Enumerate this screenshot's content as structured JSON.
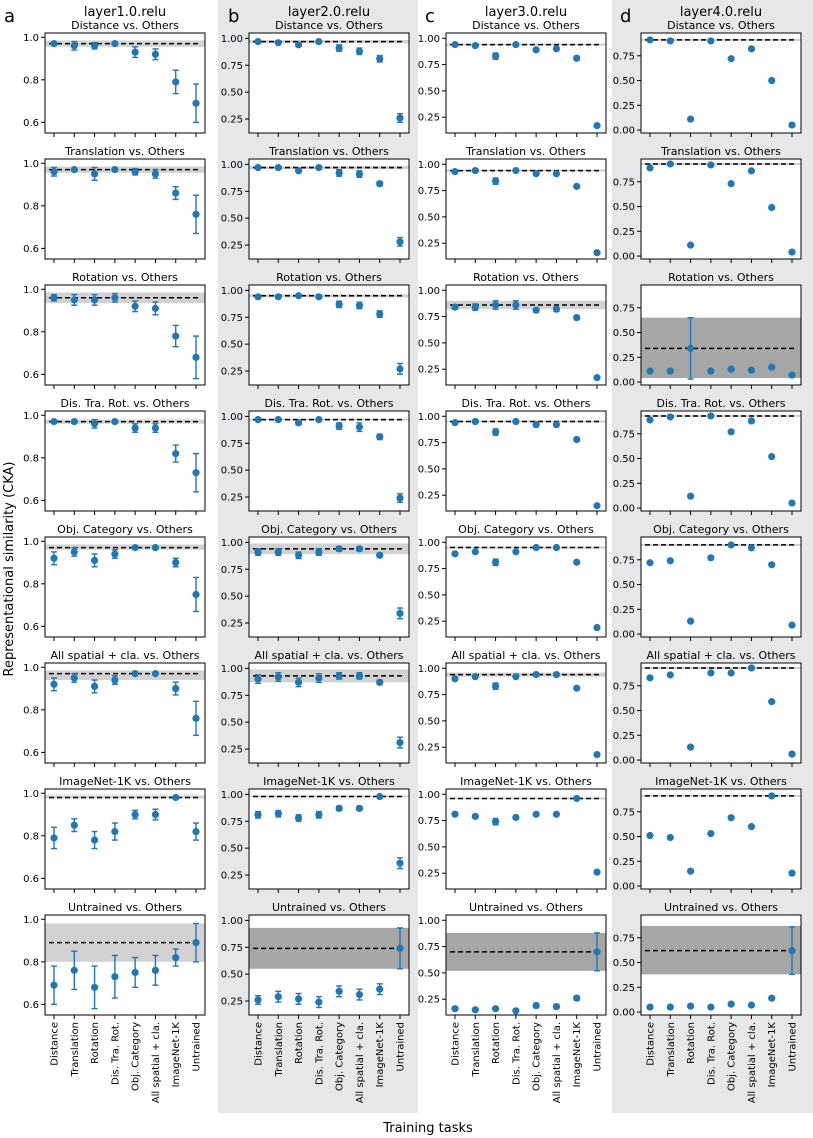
{
  "figure": {
    "ylabel": "Representational similarity (CKA)",
    "xlabel": "Training tasks",
    "tasks": [
      "Distance",
      "Translation",
      "Rotation",
      "Dis. Tra. Rot.",
      "Obj. Category",
      "All spatial + cla.",
      "ImageNet-1K",
      "Untrained"
    ],
    "columns": [
      {
        "letter": "a",
        "title": "layer1.0.relu"
      },
      {
        "letter": "b",
        "title": "layer2.0.relu"
      },
      {
        "letter": "c",
        "title": "layer3.0.relu"
      },
      {
        "letter": "d",
        "title": "layer4.0.relu"
      }
    ],
    "colors": {
      "marker": "#1f77b4",
      "band_light": "#d2d2d2",
      "band_dark": "#a6a6a6",
      "column_bg": "#e6e7e8",
      "refline": "#000000"
    }
  },
  "chart_data": [
    {
      "type": "scatter",
      "column": "a",
      "title": "Distance vs. Others",
      "ylim": [
        0.55,
        1.02
      ],
      "yticks": [
        0.6,
        0.8,
        1.0
      ],
      "ref": 0.97,
      "band": [
        0.955,
        0.985
      ],
      "y": [
        0.97,
        0.96,
        0.96,
        0.97,
        0.93,
        0.92,
        0.79,
        0.69
      ],
      "err": [
        0.01,
        0.02,
        0.015,
        0.01,
        0.025,
        0.025,
        0.055,
        0.09
      ]
    },
    {
      "type": "scatter",
      "column": "b",
      "title": "Distance vs. Others",
      "ylim": [
        0.12,
        1.05
      ],
      "yticks": [
        0.25,
        0.5,
        0.75,
        1.0
      ],
      "ref": 0.97,
      "band": [
        0.955,
        0.985
      ],
      "y": [
        0.97,
        0.96,
        0.94,
        0.97,
        0.91,
        0.88,
        0.81,
        0.26
      ],
      "err": [
        0.01,
        0.01,
        0.015,
        0.01,
        0.03,
        0.03,
        0.03,
        0.04
      ]
    },
    {
      "type": "scatter",
      "column": "c",
      "title": "Distance vs. Others",
      "ylim": [
        0.1,
        1.05
      ],
      "yticks": [
        0.25,
        0.5,
        0.75,
        1.0
      ],
      "ref": 0.94,
      "band": [
        0.93,
        0.95
      ],
      "y": [
        0.94,
        0.93,
        0.83,
        0.94,
        0.89,
        0.9,
        0.81,
        0.17
      ],
      "err": [
        0.01,
        0.01,
        0.03,
        0.01,
        0.01,
        0.01,
        0.02,
        0.01
      ]
    },
    {
      "type": "scatter",
      "column": "d",
      "title": "Distance vs. Others",
      "ylim": [
        -0.03,
        0.98
      ],
      "yticks": [
        0.0,
        0.25,
        0.5,
        0.75
      ],
      "ref": 0.91,
      "band": [
        0.9,
        0.92
      ],
      "y": [
        0.91,
        0.9,
        0.11,
        0.9,
        0.72,
        0.82,
        0.5,
        0.05
      ],
      "err": [
        0.01,
        0.01,
        0.01,
        0.01,
        0.01,
        0.01,
        0.01,
        0.01
      ]
    },
    {
      "type": "scatter",
      "column": "a",
      "title": "Translation vs. Others",
      "ylim": [
        0.55,
        1.02
      ],
      "yticks": [
        0.6,
        0.8,
        1.0
      ],
      "ref": 0.97,
      "band": [
        0.955,
        0.985
      ],
      "y": [
        0.96,
        0.97,
        0.95,
        0.97,
        0.96,
        0.95,
        0.86,
        0.76
      ],
      "err": [
        0.02,
        0.01,
        0.03,
        0.01,
        0.015,
        0.02,
        0.03,
        0.09
      ]
    },
    {
      "type": "scatter",
      "column": "b",
      "title": "Translation vs. Others",
      "ylim": [
        0.12,
        1.05
      ],
      "yticks": [
        0.25,
        0.5,
        0.75,
        1.0
      ],
      "ref": 0.97,
      "band": [
        0.955,
        0.985
      ],
      "y": [
        0.97,
        0.97,
        0.94,
        0.97,
        0.92,
        0.91,
        0.82,
        0.28
      ],
      "err": [
        0.01,
        0.01,
        0.015,
        0.01,
        0.03,
        0.03,
        0.02,
        0.04
      ]
    },
    {
      "type": "scatter",
      "column": "c",
      "title": "Translation vs. Others",
      "ylim": [
        0.1,
        1.05
      ],
      "yticks": [
        0.25,
        0.5,
        0.75,
        1.0
      ],
      "ref": 0.94,
      "band": [
        0.93,
        0.95
      ],
      "y": [
        0.93,
        0.94,
        0.84,
        0.94,
        0.91,
        0.91,
        0.79,
        0.16
      ],
      "err": [
        0.01,
        0.01,
        0.03,
        0.01,
        0.01,
        0.01,
        0.01,
        0.01
      ]
    },
    {
      "type": "scatter",
      "column": "d",
      "title": "Translation vs. Others",
      "ylim": [
        -0.03,
        0.98
      ],
      "yticks": [
        0.0,
        0.25,
        0.5,
        0.75
      ],
      "ref": 0.93,
      "band": [
        0.92,
        0.94
      ],
      "y": [
        0.89,
        0.93,
        0.11,
        0.92,
        0.73,
        0.86,
        0.49,
        0.04
      ],
      "err": [
        0.01,
        0.01,
        0.01,
        0.01,
        0.01,
        0.01,
        0.01,
        0.01
      ]
    },
    {
      "type": "scatter",
      "column": "a",
      "title": "Rotation vs. Others",
      "ylim": [
        0.55,
        1.02
      ],
      "yticks": [
        0.6,
        0.8,
        1.0
      ],
      "ref": 0.96,
      "band": [
        0.935,
        0.985
      ],
      "y": [
        0.96,
        0.95,
        0.95,
        0.96,
        0.92,
        0.91,
        0.78,
        0.68
      ],
      "err": [
        0.015,
        0.025,
        0.025,
        0.02,
        0.025,
        0.03,
        0.05,
        0.1
      ]
    },
    {
      "type": "scatter",
      "column": "b",
      "title": "Rotation vs. Others",
      "ylim": [
        0.12,
        1.05
      ],
      "yticks": [
        0.25,
        0.5,
        0.75,
        1.0
      ],
      "ref": 0.95,
      "band": [
        0.935,
        0.965
      ],
      "y": [
        0.94,
        0.94,
        0.95,
        0.94,
        0.87,
        0.86,
        0.78,
        0.27
      ],
      "err": [
        0.01,
        0.01,
        0.01,
        0.01,
        0.03,
        0.03,
        0.03,
        0.05
      ]
    },
    {
      "type": "scatter",
      "column": "c",
      "title": "Rotation vs. Others",
      "ylim": [
        0.1,
        1.05
      ],
      "yticks": [
        0.25,
        0.5,
        0.75,
        1.0
      ],
      "ref": 0.86,
      "band": [
        0.82,
        0.9
      ],
      "y": [
        0.84,
        0.84,
        0.86,
        0.86,
        0.81,
        0.82,
        0.74,
        0.17
      ],
      "err": [
        0.02,
        0.03,
        0.04,
        0.04,
        0.02,
        0.02,
        0.02,
        0.01
      ]
    },
    {
      "type": "scatter",
      "column": "d",
      "title": "Rotation vs. Others",
      "ylim": [
        -0.03,
        0.98
      ],
      "yticks": [
        0.0,
        0.25,
        0.5,
        0.75
      ],
      "ref": 0.34,
      "band": [
        0.04,
        0.65
      ],
      "y": [
        0.11,
        0.11,
        0.34,
        0.11,
        0.13,
        0.12,
        0.15,
        0.07
      ],
      "err": [
        0.01,
        0.01,
        0.31,
        0.01,
        0.01,
        0.01,
        0.01,
        0.01
      ]
    },
    {
      "type": "scatter",
      "column": "a",
      "title": "Dis. Tra. Rot. vs. Others",
      "ylim": [
        0.55,
        1.02
      ],
      "yticks": [
        0.6,
        0.8,
        1.0
      ],
      "ref": 0.97,
      "band": [
        0.96,
        0.98
      ],
      "y": [
        0.97,
        0.97,
        0.96,
        0.97,
        0.94,
        0.94,
        0.82,
        0.73
      ],
      "err": [
        0.01,
        0.01,
        0.02,
        0.01,
        0.02,
        0.02,
        0.04,
        0.09
      ]
    },
    {
      "type": "scatter",
      "column": "b",
      "title": "Dis. Tra. Rot. vs. Others",
      "ylim": [
        0.12,
        1.05
      ],
      "yticks": [
        0.25,
        0.5,
        0.75,
        1.0
      ],
      "ref": 0.97,
      "band": [
        0.96,
        0.98
      ],
      "y": [
        0.97,
        0.97,
        0.94,
        0.97,
        0.91,
        0.9,
        0.81,
        0.24
      ],
      "err": [
        0.01,
        0.01,
        0.015,
        0.01,
        0.03,
        0.04,
        0.025,
        0.04
      ]
    },
    {
      "type": "scatter",
      "column": "c",
      "title": "Dis. Tra. Rot. vs. Others",
      "ylim": [
        0.1,
        1.05
      ],
      "yticks": [
        0.25,
        0.5,
        0.75,
        1.0
      ],
      "ref": 0.95,
      "band": [
        0.94,
        0.96
      ],
      "y": [
        0.94,
        0.95,
        0.85,
        0.95,
        0.92,
        0.92,
        0.78,
        0.15
      ],
      "err": [
        0.01,
        0.01,
        0.03,
        0.01,
        0.01,
        0.01,
        0.01,
        0.01
      ]
    },
    {
      "type": "scatter",
      "column": "d",
      "title": "Dis. Tra. Rot. vs. Others",
      "ylim": [
        -0.03,
        0.98
      ],
      "yticks": [
        0.0,
        0.25,
        0.5,
        0.75
      ],
      "ref": 0.93,
      "band": [
        0.92,
        0.94
      ],
      "y": [
        0.89,
        0.92,
        0.12,
        0.93,
        0.77,
        0.88,
        0.52,
        0.05
      ],
      "err": [
        0.01,
        0.01,
        0.01,
        0.01,
        0.01,
        0.01,
        0.01,
        0.01
      ]
    },
    {
      "type": "scatter",
      "column": "a",
      "title": "Obj. Category vs. Others",
      "ylim": [
        0.55,
        1.02
      ],
      "yticks": [
        0.6,
        0.8,
        1.0
      ],
      "ref": 0.97,
      "band": [
        0.96,
        0.985
      ],
      "y": [
        0.92,
        0.95,
        0.91,
        0.94,
        0.97,
        0.97,
        0.9,
        0.75
      ],
      "err": [
        0.03,
        0.02,
        0.03,
        0.02,
        0.01,
        0.01,
        0.02,
        0.08
      ]
    },
    {
      "type": "scatter",
      "column": "b",
      "title": "Obj. Category vs. Others",
      "ylim": [
        0.12,
        1.05
      ],
      "yticks": [
        0.25,
        0.5,
        0.75,
        1.0
      ],
      "ref": 0.94,
      "band": [
        0.89,
        0.99
      ],
      "y": [
        0.91,
        0.91,
        0.88,
        0.91,
        0.94,
        0.94,
        0.88,
        0.34
      ],
      "err": [
        0.03,
        0.03,
        0.03,
        0.03,
        0.02,
        0.02,
        0.02,
        0.05
      ]
    },
    {
      "type": "scatter",
      "column": "c",
      "title": "Obj. Category vs. Others",
      "ylim": [
        0.1,
        1.05
      ],
      "yticks": [
        0.25,
        0.5,
        0.75,
        1.0
      ],
      "ref": 0.95,
      "band": [
        0.94,
        0.96
      ],
      "y": [
        0.89,
        0.91,
        0.81,
        0.91,
        0.95,
        0.95,
        0.81,
        0.19
      ],
      "err": [
        0.01,
        0.01,
        0.03,
        0.01,
        0.01,
        0.01,
        0.01,
        0.01
      ]
    },
    {
      "type": "scatter",
      "column": "d",
      "title": "Obj. Category vs. Others",
      "ylim": [
        -0.03,
        0.98
      ],
      "yticks": [
        0.0,
        0.25,
        0.5,
        0.75
      ],
      "ref": 0.9,
      "band": [
        0.89,
        0.91
      ],
      "y": [
        0.72,
        0.74,
        0.13,
        0.77,
        0.9,
        0.87,
        0.7,
        0.09
      ],
      "err": [
        0.01,
        0.01,
        0.01,
        0.01,
        0.01,
        0.01,
        0.01,
        0.01
      ]
    },
    {
      "type": "scatter",
      "column": "a",
      "title": "All spatial + cla. vs. Others",
      "ylim": [
        0.55,
        1.02
      ],
      "yticks": [
        0.6,
        0.8,
        1.0
      ],
      "ref": 0.97,
      "band": [
        0.94,
        0.985
      ],
      "y": [
        0.92,
        0.95,
        0.91,
        0.94,
        0.97,
        0.97,
        0.9,
        0.76
      ],
      "err": [
        0.03,
        0.02,
        0.03,
        0.02,
        0.01,
        0.01,
        0.03,
        0.08
      ]
    },
    {
      "type": "scatter",
      "column": "b",
      "title": "All spatial + cla. vs. Others",
      "ylim": [
        0.12,
        1.05
      ],
      "yticks": [
        0.25,
        0.5,
        0.75,
        1.0
      ],
      "ref": 0.93,
      "band": [
        0.87,
        0.99
      ],
      "y": [
        0.9,
        0.92,
        0.87,
        0.91,
        0.93,
        0.93,
        0.87,
        0.31
      ],
      "err": [
        0.04,
        0.04,
        0.04,
        0.04,
        0.03,
        0.03,
        0.02,
        0.05
      ]
    },
    {
      "type": "scatter",
      "column": "c",
      "title": "All spatial + cla. vs. Others",
      "ylim": [
        0.1,
        1.05
      ],
      "yticks": [
        0.25,
        0.5,
        0.75,
        1.0
      ],
      "ref": 0.94,
      "band": [
        0.92,
        0.96
      ],
      "y": [
        0.9,
        0.92,
        0.83,
        0.92,
        0.94,
        0.94,
        0.81,
        0.18
      ],
      "err": [
        0.01,
        0.01,
        0.03,
        0.01,
        0.01,
        0.01,
        0.01,
        0.01
      ]
    },
    {
      "type": "scatter",
      "column": "d",
      "title": "All spatial + cla. vs. Others",
      "ylim": [
        -0.03,
        0.98
      ],
      "yticks": [
        0.0,
        0.25,
        0.5,
        0.75
      ],
      "ref": 0.93,
      "band": [
        0.92,
        0.94
      ],
      "y": [
        0.83,
        0.86,
        0.13,
        0.88,
        0.88,
        0.93,
        0.59,
        0.06
      ],
      "err": [
        0.01,
        0.01,
        0.01,
        0.01,
        0.01,
        0.01,
        0.01,
        0.01
      ]
    },
    {
      "type": "scatter",
      "column": "a",
      "title": "ImageNet-1K vs. Others",
      "ylim": [
        0.55,
        1.02
      ],
      "yticks": [
        0.6,
        0.8,
        1.0
      ],
      "ref": 0.98,
      "band": [
        0.975,
        0.99
      ],
      "y": [
        0.79,
        0.85,
        0.78,
        0.82,
        0.9,
        0.9,
        0.98,
        0.82
      ],
      "err": [
        0.05,
        0.03,
        0.04,
        0.04,
        0.02,
        0.025,
        0.005,
        0.04
      ]
    },
    {
      "type": "scatter",
      "column": "b",
      "title": "ImageNet-1K vs. Others",
      "ylim": [
        0.12,
        1.05
      ],
      "yticks": [
        0.25,
        0.5,
        0.75,
        1.0
      ],
      "ref": 0.98,
      "band": [
        0.975,
        0.99
      ],
      "y": [
        0.81,
        0.82,
        0.78,
        0.81,
        0.87,
        0.87,
        0.98,
        0.36
      ],
      "err": [
        0.03,
        0.03,
        0.03,
        0.03,
        0.02,
        0.02,
        0.01,
        0.05
      ]
    },
    {
      "type": "scatter",
      "column": "c",
      "title": "ImageNet-1K vs. Others",
      "ylim": [
        0.1,
        1.05
      ],
      "yticks": [
        0.25,
        0.5,
        0.75,
        1.0
      ],
      "ref": 0.96,
      "band": [
        0.95,
        0.97
      ],
      "y": [
        0.81,
        0.79,
        0.74,
        0.78,
        0.81,
        0.81,
        0.96,
        0.26
      ],
      "err": [
        0.01,
        0.01,
        0.03,
        0.01,
        0.01,
        0.01,
        0.01,
        0.01
      ]
    },
    {
      "type": "scatter",
      "column": "d",
      "title": "ImageNet-1K vs. Others",
      "ylim": [
        -0.03,
        0.98
      ],
      "yticks": [
        0.0,
        0.25,
        0.5,
        0.75
      ],
      "ref": 0.91,
      "band": [
        0.9,
        0.92
      ],
      "y": [
        0.51,
        0.49,
        0.15,
        0.53,
        0.69,
        0.6,
        0.91,
        0.13
      ],
      "err": [
        0.01,
        0.01,
        0.01,
        0.01,
        0.01,
        0.01,
        0.01,
        0.01
      ]
    },
    {
      "type": "scatter",
      "column": "a",
      "title": "Untrained vs. Others",
      "ylim": [
        0.55,
        1.02
      ],
      "yticks": [
        0.6,
        0.8,
        1.0
      ],
      "ref": 0.89,
      "band": [
        0.8,
        0.98
      ],
      "y": [
        0.69,
        0.76,
        0.68,
        0.73,
        0.75,
        0.76,
        0.82,
        0.89
      ],
      "err": [
        0.09,
        0.09,
        0.1,
        0.1,
        0.07,
        0.07,
        0.04,
        0.09
      ]
    },
    {
      "type": "scatter",
      "column": "b",
      "title": "Untrained vs. Others",
      "ylim": [
        0.12,
        1.05
      ],
      "yticks": [
        0.25,
        0.5,
        0.75,
        1.0
      ],
      "ref": 0.74,
      "band": [
        0.55,
        0.93
      ],
      "y": [
        0.26,
        0.29,
        0.27,
        0.24,
        0.34,
        0.31,
        0.36,
        0.74
      ],
      "err": [
        0.04,
        0.05,
        0.05,
        0.05,
        0.05,
        0.05,
        0.05,
        0.19
      ]
    },
    {
      "type": "scatter",
      "column": "c",
      "title": "Untrained vs. Others",
      "ylim": [
        0.1,
        1.05
      ],
      "yticks": [
        0.25,
        0.5,
        0.75,
        1.0
      ],
      "ref": 0.7,
      "band": [
        0.52,
        0.88
      ],
      "y": [
        0.16,
        0.15,
        0.16,
        0.14,
        0.19,
        0.18,
        0.26,
        0.7
      ],
      "err": [
        0.01,
        0.01,
        0.01,
        0.01,
        0.02,
        0.02,
        0.02,
        0.18
      ]
    },
    {
      "type": "scatter",
      "column": "d",
      "title": "Untrained vs. Others",
      "ylim": [
        -0.03,
        0.98
      ],
      "yticks": [
        0.0,
        0.25,
        0.5,
        0.75
      ],
      "ref": 0.62,
      "band": [
        0.38,
        0.87
      ],
      "y": [
        0.05,
        0.05,
        0.06,
        0.05,
        0.08,
        0.07,
        0.14,
        0.62
      ],
      "err": [
        0.01,
        0.01,
        0.01,
        0.01,
        0.01,
        0.01,
        0.01,
        0.24
      ]
    }
  ]
}
